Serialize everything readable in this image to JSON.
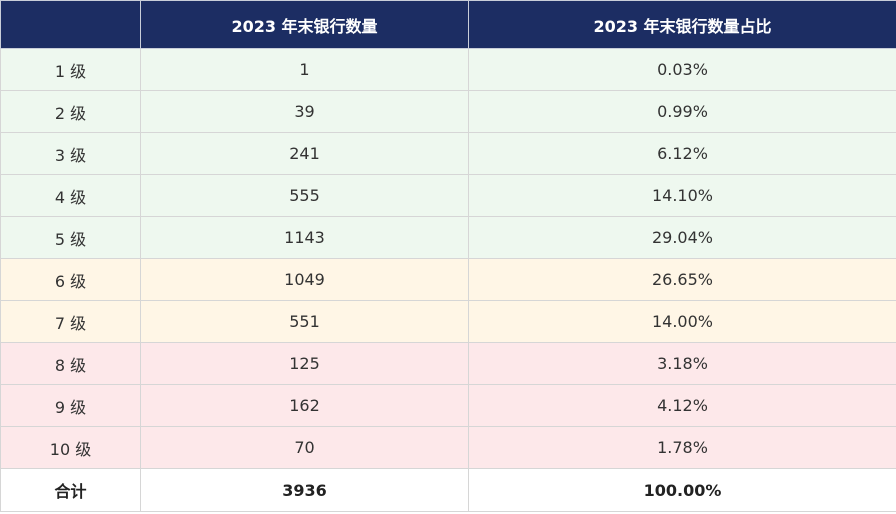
{
  "table": {
    "headers": [
      "",
      "2023 年末银行数量",
      "2023 年末银行数量占比"
    ],
    "rows": [
      {
        "level": "1 级",
        "count": "1",
        "share": "0.03%",
        "band": "green"
      },
      {
        "level": "2 级",
        "count": "39",
        "share": "0.99%",
        "band": "green"
      },
      {
        "level": "3 级",
        "count": "241",
        "share": "6.12%",
        "band": "green"
      },
      {
        "level": "4 级",
        "count": "555",
        "share": "14.10%",
        "band": "green"
      },
      {
        "level": "5 级",
        "count": "1143",
        "share": "29.04%",
        "band": "green"
      },
      {
        "level": "6 级",
        "count": "1049",
        "share": "26.65%",
        "band": "yellow"
      },
      {
        "level": "7 级",
        "count": "551",
        "share": "14.00%",
        "band": "yellow"
      },
      {
        "level": "8 级",
        "count": "125",
        "share": "3.18%",
        "band": "red"
      },
      {
        "level": "9 级",
        "count": "162",
        "share": "4.12%",
        "band": "red"
      },
      {
        "level": "10 级",
        "count": "70",
        "share": "1.78%",
        "band": "red"
      }
    ],
    "total": {
      "label": "合计",
      "count": "3936",
      "share": "100.00%"
    }
  },
  "colors": {
    "header_bg": "#1c2d63",
    "green_band": "#eef8ef",
    "yellow_band": "#fff6e6",
    "red_band": "#fde8ea"
  }
}
